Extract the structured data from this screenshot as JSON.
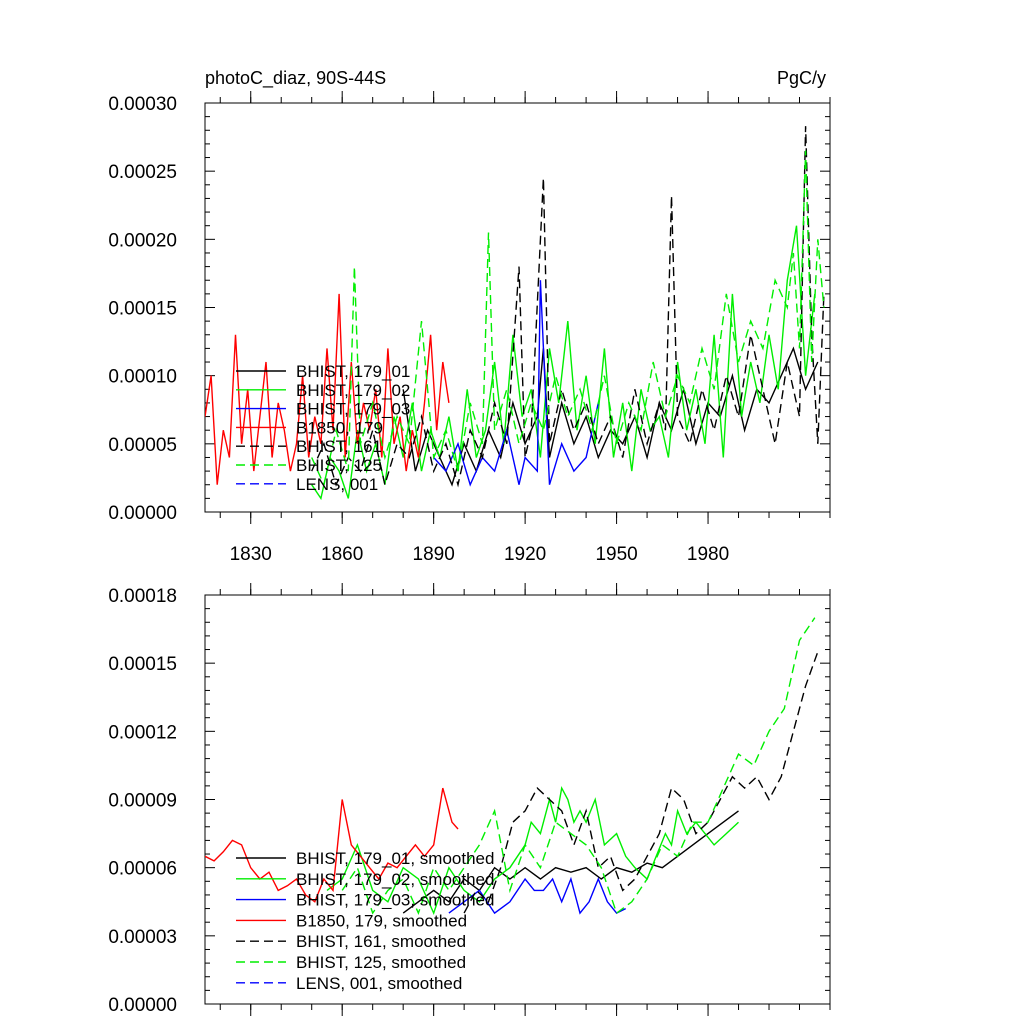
{
  "chart_data": [
    {
      "type": "line",
      "title_left": "photoC_diaz, 90S-44S",
      "title_right": "PgC/y",
      "xlim": [
        1815,
        2020
      ],
      "ylim": [
        0,
        0.0003
      ],
      "x_ticks": [
        1830,
        1860,
        1890,
        1920,
        1950,
        1980
      ],
      "x_tick_labels": [
        "1830",
        "1860",
        "1890",
        "1920",
        "1950",
        "1980"
      ],
      "y_ticks": [
        0,
        5e-05,
        0.0001,
        0.00015,
        0.0002,
        0.00025,
        0.0003
      ],
      "y_tick_labels": [
        "0.00000",
        "0.00005",
        "0.00010",
        "0.00015",
        "0.00020",
        "0.00025",
        "0.00030"
      ],
      "legend_position": "lower-left",
      "series": [
        {
          "name": "BHIST, 179_01",
          "color": "#000000",
          "dash": "solid",
          "x": [
            1880,
            1884,
            1888,
            1892,
            1896,
            1900,
            1904,
            1908,
            1912,
            1916,
            1920,
            1924,
            1926,
            1928,
            1932,
            1936,
            1940,
            1944,
            1948,
            1952,
            1956,
            1960,
            1964,
            1968,
            1972,
            1976,
            1980,
            1984,
            1988,
            1992,
            1996,
            2000,
            2004,
            2008,
            2012,
            2016
          ],
          "y": [
            9e-05,
            3e-05,
            6e-05,
            4e-05,
            2e-05,
            5e-05,
            3e-05,
            6e-05,
            4e-05,
            8e-05,
            5e-05,
            7e-05,
            0.00012,
            4e-05,
            8e-05,
            5e-05,
            7e-05,
            4e-05,
            6e-05,
            5e-05,
            7e-05,
            4e-05,
            8e-05,
            6e-05,
            9e-05,
            5e-05,
            8e-05,
            7e-05,
            0.0001,
            6e-05,
            9e-05,
            8e-05,
            0.0001,
            0.00012,
            9e-05,
            0.00011
          ]
        },
        {
          "name": "BHIST, 179_02",
          "color": "#00ee00",
          "dash": "solid",
          "x": [
            1850,
            1853,
            1856,
            1859,
            1862,
            1865,
            1868,
            1871,
            1874,
            1877,
            1880,
            1883,
            1886,
            1889,
            1892,
            1895,
            1898,
            1901,
            1904,
            1907,
            1910,
            1913,
            1916,
            1919,
            1922,
            1925,
            1928,
            1931,
            1934,
            1937,
            1940,
            1943,
            1946,
            1949,
            1952,
            1955,
            1958,
            1961,
            1964,
            1967,
            1970,
            1973,
            1976,
            1979,
            1982,
            1985,
            1988,
            1991,
            1994,
            1997,
            2000,
            2003,
            2006,
            2009,
            2012,
            2015
          ],
          "y": [
            2e-05,
            1e-05,
            4e-05,
            3e-05,
            1e-05,
            6e-05,
            3e-05,
            5e-05,
            2e-05,
            7e-05,
            4e-05,
            8e-05,
            3e-05,
            6e-05,
            4e-05,
            7e-05,
            3e-05,
            9e-05,
            4e-05,
            6e-05,
            0.00011,
            5e-05,
            0.00013,
            7e-05,
            9e-05,
            4e-05,
            0.00012,
            8e-05,
            0.00014,
            6e-05,
            0.0001,
            5e-05,
            0.00012,
            4e-05,
            8e-05,
            3e-05,
            9e-05,
            6e-05,
            7e-05,
            4e-05,
            0.00011,
            6e-05,
            9e-05,
            5e-05,
            0.00013,
            4e-05,
            0.00016,
            7e-05,
            0.00011,
            8e-05,
            0.00013,
            9e-05,
            0.00017,
            0.00021,
            0.0001,
            0.00016
          ]
        },
        {
          "name": "BHIST, 179_03",
          "color": "#0000ff",
          "dash": "solid",
          "x": [
            1890,
            1894,
            1898,
            1902,
            1906,
            1910,
            1914,
            1918,
            1920,
            1924,
            1925,
            1928,
            1932,
            1936,
            1940,
            1944
          ],
          "y": [
            4e-05,
            3e-05,
            5e-05,
            2e-05,
            4e-05,
            3e-05,
            6e-05,
            2e-05,
            4e-05,
            3e-05,
            0.00017,
            2e-05,
            5e-05,
            3e-05,
            4e-05,
            8e-05
          ]
        },
        {
          "name": "B1850, 179",
          "color": "#ff0000",
          "dash": "solid",
          "x": [
            1815,
            1817,
            1819,
            1821,
            1823,
            1825,
            1827,
            1829,
            1831,
            1833,
            1835,
            1837,
            1839,
            1841,
            1843,
            1845,
            1847,
            1849,
            1851,
            1853,
            1855,
            1857,
            1859,
            1861,
            1863,
            1865,
            1867,
            1869,
            1871,
            1873,
            1875,
            1877,
            1879,
            1881,
            1883,
            1885,
            1887,
            1889,
            1891,
            1893,
            1895
          ],
          "y": [
            7e-05,
            0.0001,
            2e-05,
            6e-05,
            4e-05,
            0.00013,
            5e-05,
            9e-05,
            3e-05,
            7e-05,
            0.00011,
            4e-05,
            8e-05,
            6e-05,
            3e-05,
            5e-05,
            0.0001,
            4e-05,
            7e-05,
            5e-05,
            0.00012,
            6e-05,
            0.00016,
            4e-05,
            0.00011,
            5e-05,
            8e-05,
            6e-05,
            9e-05,
            4e-05,
            0.00012,
            5e-05,
            7e-05,
            3e-05,
            6e-05,
            4e-05,
            8e-05,
            0.00013,
            6e-05,
            0.00011,
            8e-05
          ]
        },
        {
          "name": "BHIST, 161",
          "color": "#000000",
          "dash": "dashed",
          "x": [
            1850,
            1854,
            1858,
            1862,
            1866,
            1870,
            1874,
            1878,
            1882,
            1886,
            1890,
            1894,
            1898,
            1902,
            1906,
            1910,
            1914,
            1918,
            1920,
            1922,
            1926,
            1928,
            1932,
            1936,
            1940,
            1944,
            1948,
            1952,
            1956,
            1960,
            1964,
            1966,
            1968,
            1970,
            1974,
            1978,
            1982,
            1986,
            1990,
            1994,
            1998,
            2002,
            2004,
            2006,
            2008,
            2010,
            2012,
            2014,
            2016,
            2018
          ],
          "y": [
            3e-05,
            5e-05,
            2e-05,
            4e-05,
            3e-05,
            6e-05,
            2e-05,
            5e-05,
            4e-05,
            7e-05,
            3e-05,
            5e-05,
            2e-05,
            6e-05,
            4e-05,
            8e-05,
            5e-05,
            0.00018,
            4e-05,
            6e-05,
            0.000245,
            5e-05,
            9e-05,
            6e-05,
            8e-05,
            5e-05,
            7e-05,
            4e-05,
            9e-05,
            5e-05,
            8e-05,
            6e-05,
            0.000232,
            7e-05,
            5e-05,
            9e-05,
            6e-05,
            0.0001,
            7e-05,
            0.00013,
            9e-05,
            5e-05,
            8e-05,
            0.00011,
            9e-05,
            7e-05,
            0.000283,
            0.00013,
            5e-05,
            0.00016
          ]
        },
        {
          "name": "BHIST, 125",
          "color": "#00ee00",
          "dash": "dashed",
          "x": [
            1850,
            1854,
            1858,
            1862,
            1864,
            1866,
            1870,
            1874,
            1878,
            1882,
            1886,
            1890,
            1894,
            1898,
            1902,
            1906,
            1908,
            1910,
            1914,
            1918,
            1922,
            1926,
            1930,
            1934,
            1938,
            1942,
            1946,
            1950,
            1954,
            1958,
            1962,
            1966,
            1970,
            1974,
            1978,
            1982,
            1986,
            1990,
            1994,
            1998,
            2002,
            2006,
            2008,
            2010,
            2012,
            2014,
            2016,
            2018
          ],
          "y": [
            4e-05,
            2e-05,
            6e-05,
            3e-05,
            0.00018,
            5e-05,
            8e-05,
            4e-05,
            7e-05,
            5e-05,
            0.00014,
            4e-05,
            6e-05,
            3e-05,
            8e-05,
            5e-05,
            0.000205,
            6e-05,
            9e-05,
            5e-05,
            8e-05,
            6e-05,
            0.0001,
            7e-05,
            9e-05,
            6e-05,
            0.0001,
            5e-05,
            8e-05,
            6e-05,
            0.00011,
            7e-05,
            0.0001,
            8e-05,
            0.00012,
            9e-05,
            0.00016,
            0.00011,
            0.00014,
            0.00012,
            0.00017,
            0.00015,
            0.00019,
            0.00012,
            0.000265,
            0.00011,
            0.0002,
            0.00015
          ]
        },
        {
          "name": "LENS, 001",
          "color": "#0000ff",
          "dash": "dashed",
          "x": [],
          "y": []
        }
      ]
    },
    {
      "type": "line",
      "xlim": [
        1815,
        2020
      ],
      "ylim": [
        0,
        0.00018
      ],
      "x_ticks": [
        1830,
        1860,
        1890,
        1920,
        1950,
        1980
      ],
      "y_ticks": [
        0,
        3e-05,
        6e-05,
        9e-05,
        0.00012,
        0.00015,
        0.00018
      ],
      "y_tick_labels": [
        "0.00000",
        "0.00003",
        "0.00006",
        "0.00009",
        "0.00012",
        "0.00015",
        "0.00018"
      ],
      "legend_position": "lower-left",
      "series": [
        {
          "name": "BHIST, 179_01, smoothed",
          "color": "#000000",
          "dash": "solid",
          "x": [
            1880,
            1885,
            1890,
            1895,
            1900,
            1905,
            1910,
            1915,
            1920,
            1925,
            1930,
            1935,
            1940,
            1945,
            1950,
            1955,
            1960,
            1965,
            1970,
            1975,
            1980,
            1985,
            1990
          ],
          "y": [
            4e-05,
            4.5e-05,
            5e-05,
            4.5e-05,
            5.5e-05,
            5e-05,
            6e-05,
            5.5e-05,
            6e-05,
            5.5e-05,
            6e-05,
            5.8e-05,
            6e-05,
            5.5e-05,
            6e-05,
            5.8e-05,
            6.2e-05,
            6e-05,
            6.5e-05,
            7e-05,
            7.5e-05,
            8e-05,
            8.5e-05
          ]
        },
        {
          "name": "BHIST, 179_02, smoothed",
          "color": "#00ee00",
          "dash": "solid",
          "x": [
            1855,
            1860,
            1865,
            1870,
            1875,
            1880,
            1885,
            1890,
            1895,
            1900,
            1905,
            1910,
            1915,
            1920,
            1922,
            1925,
            1928,
            1930,
            1932,
            1934,
            1936,
            1938,
            1940,
            1943,
            1946,
            1950,
            1953,
            1956,
            1960,
            1963,
            1966,
            1968,
            1970,
            1973,
            1976,
            1979,
            1982,
            1986,
            1990
          ],
          "y": [
            5e-05,
            5.5e-05,
            7e-05,
            5e-05,
            4.5e-05,
            6e-05,
            5.5e-05,
            4e-05,
            6e-05,
            5e-05,
            4.5e-05,
            5.5e-05,
            6e-05,
            7e-05,
            8e-05,
            7.5e-05,
            9e-05,
            8e-05,
            9.5e-05,
            9e-05,
            8e-05,
            8.5e-05,
            8e-05,
            9e-05,
            7e-05,
            7.5e-05,
            6.5e-05,
            6e-05,
            5.5e-05,
            6.5e-05,
            7.5e-05,
            7e-05,
            8.5e-05,
            7.5e-05,
            8e-05,
            7.5e-05,
            7e-05,
            7.5e-05,
            8e-05
          ]
        },
        {
          "name": "BHIST, 179_03, smoothed",
          "color": "#0000ff",
          "dash": "solid",
          "x": [
            1895,
            1900,
            1905,
            1910,
            1915,
            1920,
            1923,
            1926,
            1929,
            1932,
            1935,
            1938,
            1941,
            1944,
            1947,
            1950,
            1953
          ],
          "y": [
            4e-05,
            4.5e-05,
            5e-05,
            4e-05,
            4.5e-05,
            5.5e-05,
            5e-05,
            5e-05,
            5.5e-05,
            4.5e-05,
            5.5e-05,
            4e-05,
            4.5e-05,
            5.5e-05,
            4.5e-05,
            4e-05,
            4.2e-05
          ]
        },
        {
          "name": "B1850, 179, smoothed",
          "color": "#ff0000",
          "dash": "solid",
          "x": [
            1815,
            1818,
            1821,
            1824,
            1827,
            1830,
            1833,
            1836,
            1839,
            1842,
            1845,
            1848,
            1851,
            1854,
            1857,
            1860,
            1863,
            1866,
            1869,
            1872,
            1875,
            1878,
            1881,
            1884,
            1887,
            1890,
            1893,
            1896,
            1898
          ],
          "y": [
            6.5e-05,
            6.3e-05,
            6.7e-05,
            7.2e-05,
            7e-05,
            6e-05,
            5.5e-05,
            5.8e-05,
            5e-05,
            5.2e-05,
            5.5e-05,
            4.8e-05,
            4.5e-05,
            5.5e-05,
            5e-05,
            9e-05,
            7e-05,
            6.5e-05,
            6e-05,
            5.5e-05,
            6.2e-05,
            6e-05,
            6.5e-05,
            7e-05,
            6.5e-05,
            7e-05,
            9.5e-05,
            8e-05,
            7.7e-05
          ]
        },
        {
          "name": "BHIST, 161, smoothed",
          "color": "#000000",
          "dash": "dashed",
          "x": [
            1900,
            1904,
            1908,
            1912,
            1916,
            1920,
            1924,
            1928,
            1932,
            1936,
            1940,
            1944,
            1948,
            1952,
            1956,
            1960,
            1964,
            1968,
            1972,
            1976,
            1980,
            1984,
            1988,
            1992,
            1996,
            2000,
            2004,
            2008,
            2012,
            2016
          ],
          "y": [
            4e-05,
            5e-05,
            4.5e-05,
            6e-05,
            8e-05,
            8.5e-05,
            9.5e-05,
            9e-05,
            8.5e-05,
            7e-05,
            8.5e-05,
            6e-05,
            6.5e-05,
            5e-05,
            5.5e-05,
            6.5e-05,
            7.5e-05,
            9.5e-05,
            9e-05,
            7.5e-05,
            8e-05,
            9e-05,
            0.0001,
            9.5e-05,
            0.0001,
            9e-05,
            0.0001,
            0.00012,
            0.00014,
            0.000155
          ]
        },
        {
          "name": "BHIST, 125, smoothed",
          "color": "#00ee00",
          "dash": "dashed",
          "x": [
            1860,
            1865,
            1870,
            1875,
            1880,
            1885,
            1890,
            1895,
            1900,
            1905,
            1910,
            1915,
            1920,
            1925,
            1930,
            1935,
            1940,
            1945,
            1950,
            1955,
            1960,
            1965,
            1970,
            1975,
            1980,
            1985,
            1990,
            1995,
            2000,
            2005,
            2010,
            2015
          ],
          "y": [
            5e-05,
            6e-05,
            4e-05,
            5e-05,
            5.5e-05,
            4e-05,
            6e-05,
            5e-05,
            6e-05,
            7e-05,
            8.5e-05,
            5e-05,
            7e-05,
            6e-05,
            8e-05,
            7.5e-05,
            7e-05,
            6e-05,
            4e-05,
            4.5e-05,
            5.5e-05,
            7e-05,
            6.5e-05,
            8e-05,
            8e-05,
            9.5e-05,
            0.00011,
            0.000105,
            0.00012,
            0.00013,
            0.00016,
            0.00017
          ]
        },
        {
          "name": "LENS, 001, smoothed",
          "color": "#0000ff",
          "dash": "dashed",
          "x": [],
          "y": []
        }
      ]
    }
  ]
}
